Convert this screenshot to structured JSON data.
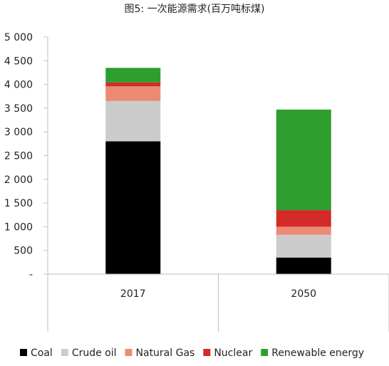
{
  "chart_data": {
    "type": "bar",
    "stacked": true,
    "title": "图5: 一次能源需求(百万吨标煤)",
    "categories": [
      "2017",
      "2050"
    ],
    "series": [
      {
        "name": "Coal",
        "color": "#000000",
        "values": [
          2800,
          350
        ]
      },
      {
        "name": "Crude oil",
        "color": "#cccccc",
        "values": [
          850,
          480
        ]
      },
      {
        "name": "Natural Gas",
        "color": "#ec8b73",
        "values": [
          310,
          170
        ]
      },
      {
        "name": "Nuclear",
        "color": "#d42a2a",
        "values": [
          80,
          350
        ]
      },
      {
        "name": "Renewable energy",
        "color": "#2e9e2e",
        "values": [
          310,
          2120
        ]
      }
    ],
    "ylim": [
      0,
      5000
    ],
    "y_ticks": [
      0,
      500,
      1000,
      1500,
      2000,
      2500,
      3000,
      3500,
      4000,
      4500,
      5000
    ],
    "y_tick_labels": [
      "-",
      "500",
      "1 000",
      "1 500",
      "2 000",
      "2 500",
      "3 000",
      "3 500",
      "4 000",
      "4 500",
      "5 000"
    ],
    "grid": false,
    "legend": "bottom"
  }
}
